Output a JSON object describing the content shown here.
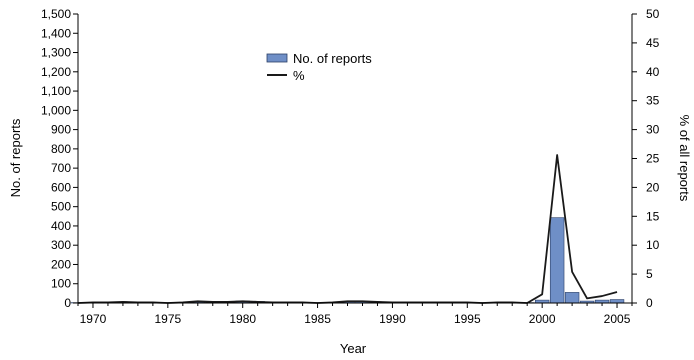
{
  "chart_data": {
    "type": "bar",
    "title": "",
    "xlabel": "Year",
    "ylabel": "No. of reports",
    "y2label": "% of all reports",
    "xlim": [
      1969,
      2006
    ],
    "ylim": [
      0,
      1500
    ],
    "y2lim": [
      0,
      50
    ],
    "xticks": [
      1970,
      1975,
      1980,
      1985,
      1990,
      1995,
      2000,
      2005
    ],
    "yticks": [
      0,
      100,
      200,
      300,
      400,
      500,
      600,
      700,
      800,
      900,
      1000,
      1100,
      1200,
      1300,
      1400,
      1500
    ],
    "y2ticks": [
      0,
      5,
      10,
      15,
      20,
      25,
      30,
      35,
      40,
      45,
      50
    ],
    "grid": false,
    "legend_position": "top-center",
    "bar_color": "#6f8fc7",
    "line_color": "#1a1a1a",
    "series": [
      {
        "name": "No. of reports",
        "kind": "bar",
        "axis": "left",
        "x": [
          1969,
          1970,
          1971,
          1972,
          1973,
          1974,
          1975,
          1976,
          1977,
          1978,
          1979,
          1980,
          1981,
          1982,
          1983,
          1984,
          1985,
          1986,
          1987,
          1988,
          1989,
          1990,
          1991,
          1992,
          1993,
          1994,
          1995,
          1996,
          1997,
          1998,
          1999,
          2000,
          2001,
          2002,
          2003,
          2004,
          2005
        ],
        "values": [
          2,
          3,
          4,
          5,
          4,
          3,
          2,
          3,
          6,
          5,
          6,
          10,
          8,
          3,
          4,
          3,
          2,
          3,
          8,
          9,
          5,
          4,
          3,
          3,
          4,
          3,
          3,
          2,
          3,
          3,
          2,
          15,
          443,
          55,
          10,
          15,
          18
        ]
      },
      {
        "name": "%",
        "kind": "line",
        "axis": "right",
        "x": [
          1969,
          1970,
          1971,
          1972,
          1973,
          1974,
          1975,
          1976,
          1977,
          1978,
          1979,
          1980,
          1981,
          1982,
          1983,
          1984,
          1985,
          1986,
          1987,
          1988,
          1989,
          1990,
          1991,
          1992,
          1993,
          1994,
          1995,
          1996,
          1997,
          1998,
          1999,
          2000,
          2001,
          2002,
          2003,
          2004,
          2005
        ],
        "values": [
          0,
          0.1,
          0.1,
          0.2,
          0.1,
          0.1,
          0,
          0.1,
          0.3,
          0.2,
          0.2,
          0.3,
          0.2,
          0.1,
          0.1,
          0.1,
          0,
          0.1,
          0.3,
          0.3,
          0.2,
          0.1,
          0.1,
          0.1,
          0.1,
          0.1,
          0.1,
          0,
          0.1,
          0.1,
          0,
          1.5,
          25.6,
          5.4,
          0.8,
          1.2,
          1.9
        ]
      }
    ]
  }
}
